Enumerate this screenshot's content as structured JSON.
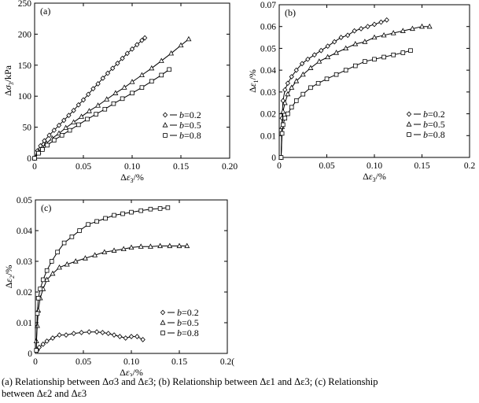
{
  "chart_data": [
    {
      "panel_label": "(a)",
      "type": "line",
      "xlabel": "Δε3/%",
      "ylabel": "Δσ3/kPa",
      "xlim": [
        0,
        0.2
      ],
      "ylim": [
        0,
        250
      ],
      "xticks": [
        "0",
        "0.05",
        "0.10",
        "0.15",
        "0.20"
      ],
      "xtick_values": [
        0,
        0.05,
        0.1,
        0.15,
        0.2
      ],
      "yticks": [
        "0",
        "50",
        "100",
        "150",
        "200",
        "250"
      ],
      "ytick_values": [
        0,
        50,
        100,
        150,
        200,
        250
      ],
      "legend": [
        "b=0.2",
        "b=0.5",
        "b=0.8"
      ],
      "series": [
        {
          "name": "b=0.2",
          "marker": "diamond",
          "x": [
            0,
            0.003,
            0.006,
            0.01,
            0.015,
            0.02,
            0.025,
            0.03,
            0.035,
            0.04,
            0.045,
            0.05,
            0.055,
            0.06,
            0.065,
            0.07,
            0.075,
            0.08,
            0.085,
            0.09,
            0.095,
            0.1,
            0.105,
            0.11,
            0.113
          ],
          "y": [
            0,
            12,
            20,
            28,
            37,
            45,
            53,
            61,
            69,
            77,
            86,
            94,
            103,
            112,
            120,
            129,
            137,
            145,
            153,
            161,
            169,
            176,
            183,
            190,
            194
          ]
        },
        {
          "name": "b=0.5",
          "marker": "triangle",
          "x": [
            0,
            0.004,
            0.008,
            0.012,
            0.018,
            0.025,
            0.032,
            0.04,
            0.048,
            0.056,
            0.065,
            0.074,
            0.083,
            0.092,
            0.1,
            0.11,
            0.12,
            0.13,
            0.14,
            0.15,
            0.158
          ],
          "y": [
            0,
            10,
            17,
            24,
            32,
            40,
            49,
            58,
            67,
            76,
            85,
            95,
            105,
            114,
            123,
            134,
            145,
            157,
            169,
            182,
            192
          ]
        },
        {
          "name": "b=0.8",
          "marker": "square",
          "x": [
            0,
            0.004,
            0.008,
            0.013,
            0.02,
            0.028,
            0.036,
            0.045,
            0.054,
            0.063,
            0.072,
            0.081,
            0.09,
            0.1,
            0.11,
            0.12,
            0.13,
            0.138
          ],
          "y": [
            0,
            8,
            14,
            21,
            29,
            37,
            45,
            54,
            63,
            71,
            79,
            88,
            96,
            105,
            114,
            124,
            134,
            143
          ]
        }
      ]
    },
    {
      "panel_label": "(b)",
      "type": "line",
      "xlabel": "Δε3/%",
      "ylabel": "Δε1/%",
      "xlim": [
        0,
        0.2
      ],
      "ylim": [
        0,
        0.07
      ],
      "xticks": [
        "0",
        "0.05",
        "0.10",
        "0.15",
        "0.2"
      ],
      "xtick_values": [
        0,
        0.05,
        0.1,
        0.15,
        0.2
      ],
      "yticks": [
        "0",
        "0.01",
        "0.02",
        "0.03",
        "0.04",
        "0.05",
        "0.06",
        "0.07"
      ],
      "ytick_values": [
        0,
        0.01,
        0.02,
        0.03,
        0.04,
        0.05,
        0.06,
        0.07
      ],
      "legend": [
        "b=0.2",
        "b=0.5",
        "b=0.8"
      ],
      "series": [
        {
          "name": "b=0.2",
          "marker": "diamond",
          "x": [
            0.002,
            0.003,
            0.004,
            0.006,
            0.009,
            0.013,
            0.018,
            0.024,
            0.03,
            0.037,
            0.044,
            0.051,
            0.058,
            0.065,
            0.072,
            0.079,
            0.086,
            0.093,
            0.1,
            0.107,
            0.113
          ],
          "y": [
            0,
            0.018,
            0.026,
            0.031,
            0.034,
            0.037,
            0.04,
            0.043,
            0.045,
            0.047,
            0.049,
            0.051,
            0.053,
            0.055,
            0.056,
            0.058,
            0.059,
            0.06,
            0.061,
            0.062,
            0.063
          ]
        },
        {
          "name": "b=0.5",
          "marker": "triangle",
          "x": [
            0.002,
            0.003,
            0.004,
            0.006,
            0.009,
            0.013,
            0.018,
            0.025,
            0.033,
            0.042,
            0.051,
            0.06,
            0.07,
            0.08,
            0.09,
            0.1,
            0.11,
            0.12,
            0.13,
            0.14,
            0.15,
            0.158
          ],
          "y": [
            0,
            0.014,
            0.021,
            0.025,
            0.029,
            0.032,
            0.035,
            0.038,
            0.041,
            0.044,
            0.046,
            0.048,
            0.05,
            0.052,
            0.053,
            0.055,
            0.056,
            0.057,
            0.058,
            0.059,
            0.06,
            0.06
          ]
        },
        {
          "name": "b=0.8",
          "marker": "square",
          "x": [
            0.002,
            0.003,
            0.004,
            0.006,
            0.009,
            0.013,
            0.018,
            0.025,
            0.033,
            0.041,
            0.05,
            0.06,
            0.07,
            0.08,
            0.09,
            0.1,
            0.11,
            0.12,
            0.13,
            0.138
          ],
          "y": [
            0,
            0.011,
            0.015,
            0.018,
            0.02,
            0.023,
            0.026,
            0.029,
            0.032,
            0.034,
            0.036,
            0.038,
            0.04,
            0.042,
            0.044,
            0.045,
            0.046,
            0.047,
            0.048,
            0.049
          ]
        }
      ]
    },
    {
      "panel_label": "(c)",
      "type": "line",
      "xlabel": "Δε3/%",
      "ylabel": "Δε2/%",
      "xlim": [
        0,
        0.2
      ],
      "ylim": [
        0,
        0.05
      ],
      "xticks": [
        "0",
        "0.05",
        "0.10",
        "0.15",
        "0.2("
      ],
      "xtick_values": [
        0,
        0.05,
        0.1,
        0.15,
        0.2
      ],
      "yticks": [
        "0",
        "0.01",
        "0.02",
        "0.03",
        "0.04",
        "0.05"
      ],
      "ytick_values": [
        0,
        0.01,
        0.02,
        0.03,
        0.04,
        0.05
      ],
      "legend": [
        "b=0.2",
        "b=0.5",
        "b=0.8"
      ],
      "series": [
        {
          "name": "b=0.2",
          "marker": "diamond",
          "x": [
            0.002,
            0.004,
            0.008,
            0.012,
            0.018,
            0.025,
            0.032,
            0.04,
            0.048,
            0.056,
            0.064,
            0.07,
            0.076,
            0.082,
            0.088,
            0.094,
            0.1,
            0.106,
            0.112
          ],
          "y": [
            0.001,
            0.002,
            0.003,
            0.004,
            0.005,
            0.006,
            0.006,
            0.0065,
            0.0068,
            0.007,
            0.007,
            0.0068,
            0.0065,
            0.006,
            0.0055,
            0.005,
            0.0055,
            0.0055,
            0.0045
          ]
        },
        {
          "name": "b=0.5",
          "marker": "triangle",
          "x": [
            0.001,
            0.002,
            0.003,
            0.005,
            0.008,
            0.012,
            0.018,
            0.025,
            0.033,
            0.042,
            0.052,
            0.062,
            0.072,
            0.082,
            0.092,
            0.1,
            0.11,
            0.12,
            0.13,
            0.14,
            0.15,
            0.158
          ],
          "y": [
            0.004,
            0.009,
            0.014,
            0.018,
            0.021,
            0.024,
            0.026,
            0.028,
            0.029,
            0.03,
            0.031,
            0.032,
            0.033,
            0.0335,
            0.034,
            0.0345,
            0.0348,
            0.0348,
            0.035,
            0.035,
            0.035,
            0.035
          ]
        },
        {
          "name": "b=0.8",
          "marker": "square",
          "x": [
            0.001,
            0.002,
            0.003,
            0.005,
            0.008,
            0.012,
            0.017,
            0.023,
            0.03,
            0.038,
            0.046,
            0.055,
            0.064,
            0.073,
            0.082,
            0.091,
            0.1,
            0.11,
            0.12,
            0.13,
            0.138
          ],
          "y": [
            0.001,
            0.013,
            0.018,
            0.021,
            0.024,
            0.027,
            0.03,
            0.033,
            0.036,
            0.038,
            0.04,
            0.042,
            0.043,
            0.044,
            0.045,
            0.0455,
            0.046,
            0.0465,
            0.047,
            0.0472,
            0.0475
          ]
        }
      ]
    }
  ],
  "caption": {
    "line1": "(a)    Relationship between Δσ3 and Δε3; (b) Relationship between Δε1 and Δε3; (c) Relationship",
    "line2": "between Δε2 and Δε3"
  }
}
